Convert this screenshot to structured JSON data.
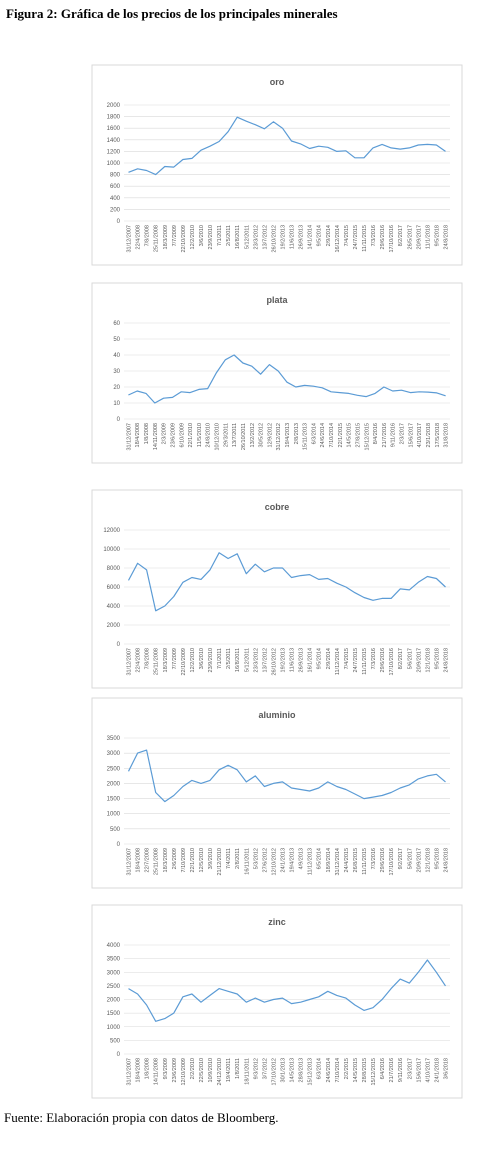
{
  "title": "Figura 2: Gráfica de los precios de los principales minerales",
  "source": "Fuente: Elaboración propia con datos de Bloomberg.",
  "chart_data": [
    {
      "type": "line",
      "title": "oro",
      "color": "#5b9bd5",
      "grid": true,
      "ylim": [
        0,
        2000
      ],
      "yticks": [
        0,
        200,
        400,
        600,
        800,
        1000,
        1200,
        1400,
        1600,
        1800,
        2000
      ],
      "categories": [
        "31/12/2007",
        "22/4/2008",
        "7/8/2008",
        "25/11/2008",
        "18/3/2009",
        "7/7/2009",
        "22/10/2009",
        "12/2/2010",
        "3/6/2010",
        "23/9/2010",
        "7/1/2011",
        "2/5/2011",
        "16/8/2011",
        "5/12/2011",
        "23/3/2012",
        "13/7/2012",
        "26/10/2012",
        "19/2/2013",
        "11/6/2013",
        "26/9/2013",
        "14/1/2014",
        "9/5/2014",
        "2/9/2014",
        "16/12/2014",
        "7/4/2015",
        "24/7/2015",
        "11/11/2015",
        "7/3/2016",
        "29/6/2016",
        "17/10/2016",
        "8/2/2017",
        "26/5/2017",
        "20/9/2017",
        "11/1/2018",
        "9/5/2018",
        "24/8/2018"
      ],
      "values": [
        840,
        900,
        870,
        800,
        940,
        930,
        1060,
        1080,
        1220,
        1290,
        1370,
        1540,
        1790,
        1720,
        1660,
        1590,
        1710,
        1600,
        1380,
        1330,
        1250,
        1290,
        1270,
        1200,
        1210,
        1090,
        1090,
        1260,
        1320,
        1260,
        1240,
        1260,
        1310,
        1320,
        1310,
        1200
      ]
    },
    {
      "type": "line",
      "title": "plata",
      "color": "#5b9bd5",
      "grid": true,
      "ylim": [
        0,
        60
      ],
      "yticks": [
        0,
        10,
        20,
        30,
        40,
        50,
        60
      ],
      "categories": [
        "31/12/2007",
        "18/4/2008",
        "1/8/2008",
        "14/11/2008",
        "2/3/2009",
        "23/6/2009",
        "6/10/2009",
        "22/1/2010",
        "11/5/2010",
        "24/8/2010",
        "10/12/2010",
        "29/3/2011",
        "13/7/2011",
        "26/10/2011",
        "13/2/2012",
        "30/5/2012",
        "12/9/2012",
        "31/12/2012",
        "19/4/2013",
        "2/8/2013",
        "15/11/2013",
        "6/3/2014",
        "24/6/2014",
        "7/10/2014",
        "22/1/2015",
        "14/5/2015",
        "27/8/2015",
        "15/12/2015",
        "8/4/2016",
        "21/7/2016",
        "9/11/2016",
        "2/3/2017",
        "15/6/2017",
        "4/10/2017",
        "23/1/2018",
        "17/5/2018",
        "31/8/2018"
      ],
      "values": [
        15,
        17.5,
        16,
        10,
        13,
        13.5,
        17,
        16.5,
        18.5,
        19,
        29,
        37,
        40,
        35,
        33,
        28,
        34,
        30,
        23,
        20,
        21,
        20.5,
        19.5,
        17,
        16.5,
        16,
        14.8,
        14,
        16,
        20,
        17.5,
        18,
        16.5,
        17,
        16.8,
        16.3,
        14.5
      ]
    },
    {
      "type": "line",
      "title": "cobre",
      "color": "#5b9bd5",
      "grid": true,
      "ylim": [
        0,
        12000
      ],
      "yticks": [
        0,
        2000,
        4000,
        6000,
        8000,
        10000,
        12000
      ],
      "categories": [
        "31/12/2007",
        "22/4/2008",
        "7/8/2008",
        "25/11/2008",
        "18/3/2009",
        "7/7/2009",
        "22/10/2009",
        "12/2/2010",
        "3/6/2010",
        "23/9/2010",
        "7/1/2011",
        "2/5/2011",
        "16/8/2011",
        "5/12/2011",
        "23/3/2012",
        "13/7/2012",
        "26/10/2012",
        "19/2/2013",
        "11/6/2013",
        "26/9/2013",
        "16/1/2014",
        "9/5/2014",
        "2/9/2014",
        "11/12/2014",
        "7/4/2015",
        "24/7/2015",
        "11/11/2015",
        "7/3/2016",
        "29/6/2016",
        "17/10/2016",
        "8/2/2017",
        "5/6/2017",
        "20/9/2017",
        "12/1/2018",
        "9/5/2018",
        "24/8/2018"
      ],
      "values": [
        6700,
        8500,
        7800,
        3500,
        4000,
        5000,
        6500,
        7000,
        6800,
        7800,
        9600,
        9000,
        9500,
        7400,
        8400,
        7600,
        8000,
        8000,
        7000,
        7200,
        7300,
        6800,
        6900,
        6400,
        6000,
        5400,
        4900,
        4600,
        4800,
        4800,
        5800,
        5700,
        6500,
        7100,
        6900,
        6000
      ]
    },
    {
      "type": "line",
      "title": "aluminio",
      "color": "#5b9bd5",
      "grid": true,
      "ylim": [
        0,
        3500
      ],
      "yticks": [
        0,
        500,
        1000,
        1500,
        2000,
        2500,
        3000,
        3500
      ],
      "categories": [
        "31/12/2007",
        "18/4/2008",
        "22/7/2008",
        "25/11/2008",
        "18/3/2009",
        "2/6/2009",
        "7/10/2009",
        "22/1/2010",
        "12/5/2010",
        "3/9/2010",
        "21/12/2010",
        "7/4/2011",
        "2/8/2011",
        "16/11/2011",
        "5/3/2012",
        "27/6/2012",
        "12/10/2012",
        "24/1/2013",
        "19/4/2013",
        "4/9/2013",
        "11/12/2013",
        "6/5/2014",
        "18/9/2014",
        "31/12/2014",
        "24/4/2015",
        "26/8/2015",
        "11/11/2015",
        "7/3/2016",
        "29/6/2016",
        "17/10/2016",
        "9/2/2017",
        "5/6/2017",
        "20/9/2017",
        "12/1/2018",
        "9/5/2018",
        "24/8/2018"
      ],
      "values": [
        2400,
        3000,
        3100,
        1700,
        1400,
        1600,
        1900,
        2100,
        2000,
        2100,
        2450,
        2600,
        2450,
        2050,
        2250,
        1900,
        2000,
        2050,
        1850,
        1800,
        1750,
        1850,
        2050,
        1900,
        1800,
        1650,
        1500,
        1550,
        1600,
        1700,
        1850,
        1950,
        2150,
        2250,
        2300,
        2050
      ]
    },
    {
      "type": "line",
      "title": "zinc",
      "color": "#5b9bd5",
      "grid": true,
      "ylim": [
        0,
        4000
      ],
      "yticks": [
        0,
        500,
        1000,
        1500,
        2000,
        2500,
        3000,
        3500,
        4000
      ],
      "categories": [
        "31/12/2007",
        "18/4/2008",
        "1/8/2008",
        "14/11/2008",
        "9/3/2009",
        "23/6/2009",
        "12/10/2009",
        "2/2/2010",
        "22/5/2010",
        "10/9/2010",
        "24/12/2010",
        "19/4/2011",
        "1/8/2011",
        "18/11/2011",
        "9/3/2012",
        "3/7/2012",
        "17/10/2012",
        "30/1/2013",
        "14/5/2013",
        "28/8/2013",
        "15/12/2013",
        "6/3/2014",
        "24/6/2014",
        "7/10/2014",
        "2/2/2015",
        "14/5/2015",
        "28/8/2015",
        "15/12/2015",
        "6/4/2016",
        "21/7/2016",
        "9/11/2016",
        "2/3/2017",
        "15/6/2017",
        "4/10/2017",
        "24/1/2018",
        "3/6/2018"
      ],
      "values": [
        2400,
        2200,
        1800,
        1200,
        1300,
        1500,
        2100,
        2200,
        1900,
        2150,
        2400,
        2300,
        2200,
        1900,
        2050,
        1900,
        2000,
        2050,
        1850,
        1900,
        2000,
        2100,
        2300,
        2150,
        2050,
        1800,
        1600,
        1700,
        2000,
        2400,
        2750,
        2600,
        3000,
        3450,
        3000,
        2500
      ]
    }
  ]
}
